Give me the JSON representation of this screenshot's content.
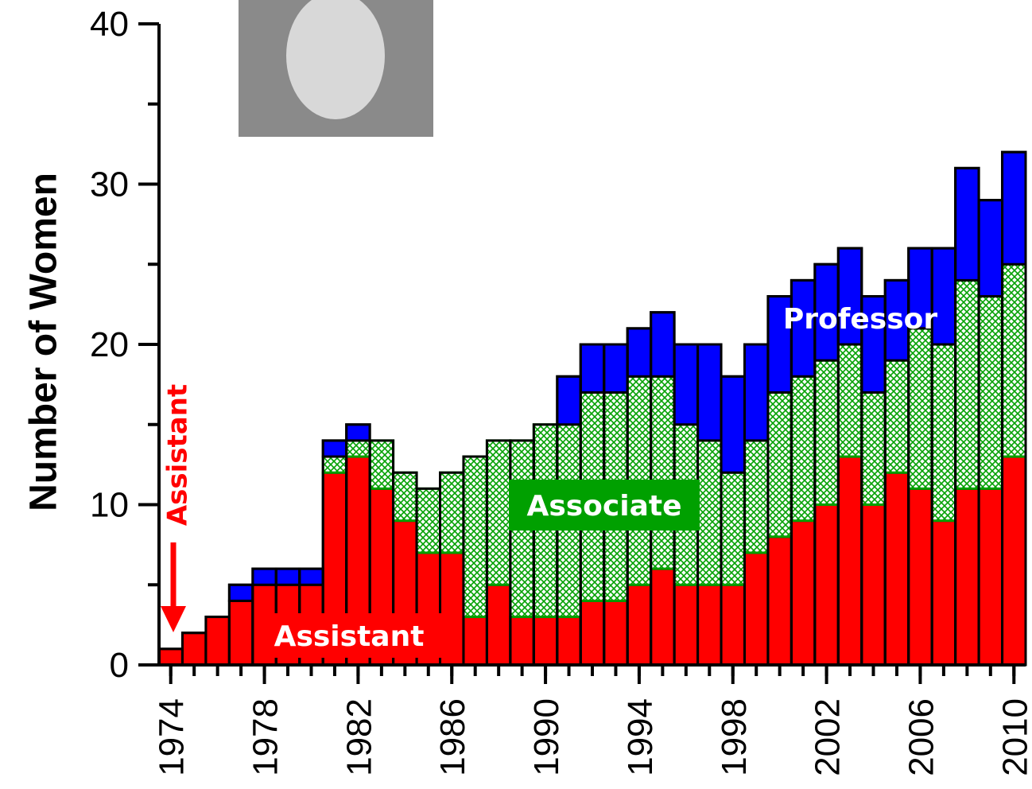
{
  "chart_data": {
    "type": "stacked-bar",
    "ylabel": "Number of Women",
    "annotation": "Assistant",
    "x": [
      1974,
      1975,
      1976,
      1977,
      1978,
      1979,
      1980,
      1981,
      1982,
      1983,
      1984,
      1985,
      1986,
      1987,
      1988,
      1989,
      1990,
      1991,
      1992,
      1993,
      1994,
      1995,
      1996,
      1997,
      1998,
      1999,
      2000,
      2001,
      2002,
      2003,
      2004,
      2005,
      2006,
      2007,
      2008,
      2009,
      2010
    ],
    "series": [
      {
        "name": "Assistant",
        "color": "#ff0000",
        "values": [
          1,
          2,
          3,
          4,
          5,
          5,
          5,
          12,
          13,
          11,
          9,
          7,
          7,
          3,
          5,
          3,
          3,
          3,
          4,
          4,
          5,
          6,
          5,
          5,
          5,
          7,
          8,
          9,
          10,
          13,
          10,
          12,
          11,
          9,
          11,
          11,
          13
        ]
      },
      {
        "name": "Associate",
        "color": "#00a000",
        "values": [
          0,
          0,
          0,
          0,
          0,
          0,
          0,
          1,
          1,
          3,
          3,
          4,
          5,
          10,
          9,
          11,
          12,
          12,
          13,
          13,
          13,
          12,
          10,
          9,
          7,
          7,
          9,
          9,
          9,
          7,
          7,
          7,
          10,
          11,
          13,
          12,
          12
        ]
      },
      {
        "name": "Professor",
        "color": "#0000ff",
        "values": [
          0,
          0,
          0,
          1,
          1,
          1,
          1,
          1,
          1,
          0,
          0,
          0,
          0,
          0,
          0,
          0,
          0,
          3,
          3,
          3,
          3,
          4,
          5,
          6,
          6,
          6,
          6,
          6,
          6,
          6,
          6,
          5,
          5,
          6,
          7,
          6,
          7
        ]
      }
    ],
    "xlim": [
      1973.5,
      2010.5
    ],
    "xticks": [
      1974,
      1978,
      1982,
      1986,
      1990,
      1994,
      1998,
      2002,
      2006,
      2010
    ],
    "ylim": [
      0,
      40
    ],
    "yticks": [
      0,
      10,
      20,
      30,
      40
    ]
  }
}
